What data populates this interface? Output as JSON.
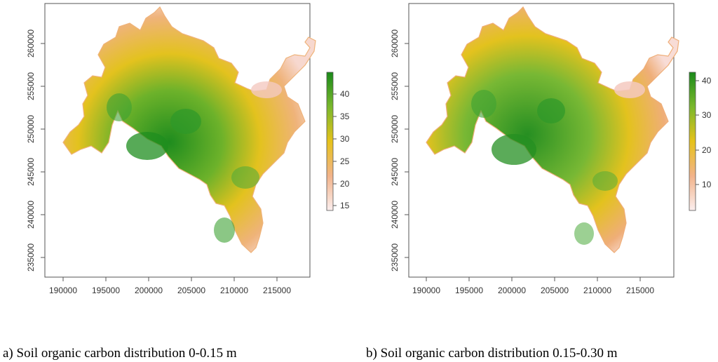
{
  "panels": [
    {
      "caption": "a) Soil organic carbon distribution 0-0.15 m",
      "x_ticks": [
        "190000",
        "195000",
        "200000",
        "205000",
        "210000",
        "215000"
      ],
      "y_ticks": [
        "260000",
        "255000",
        "250000",
        "245000",
        "240000",
        "235000"
      ],
      "legend_ticks": [
        "40",
        "35",
        "30",
        "25",
        "20",
        "15"
      ]
    },
    {
      "caption": "b) Soil organic carbon distribution 0.15-0.30 m",
      "x_ticks": [
        "190000",
        "195000",
        "200000",
        "205000",
        "210000",
        "215000"
      ],
      "y_ticks": [
        "260000",
        "255000",
        "250000",
        "245000",
        "240000",
        "235000"
      ],
      "legend_ticks": [
        "40",
        "30",
        "20",
        "10"
      ]
    }
  ],
  "colors": {
    "high": "#1a8a1a",
    "mid_high": "#7ab82c",
    "mid": "#e6c21a",
    "mid_low": "#f0a868",
    "low": "#fbe6e6"
  }
}
